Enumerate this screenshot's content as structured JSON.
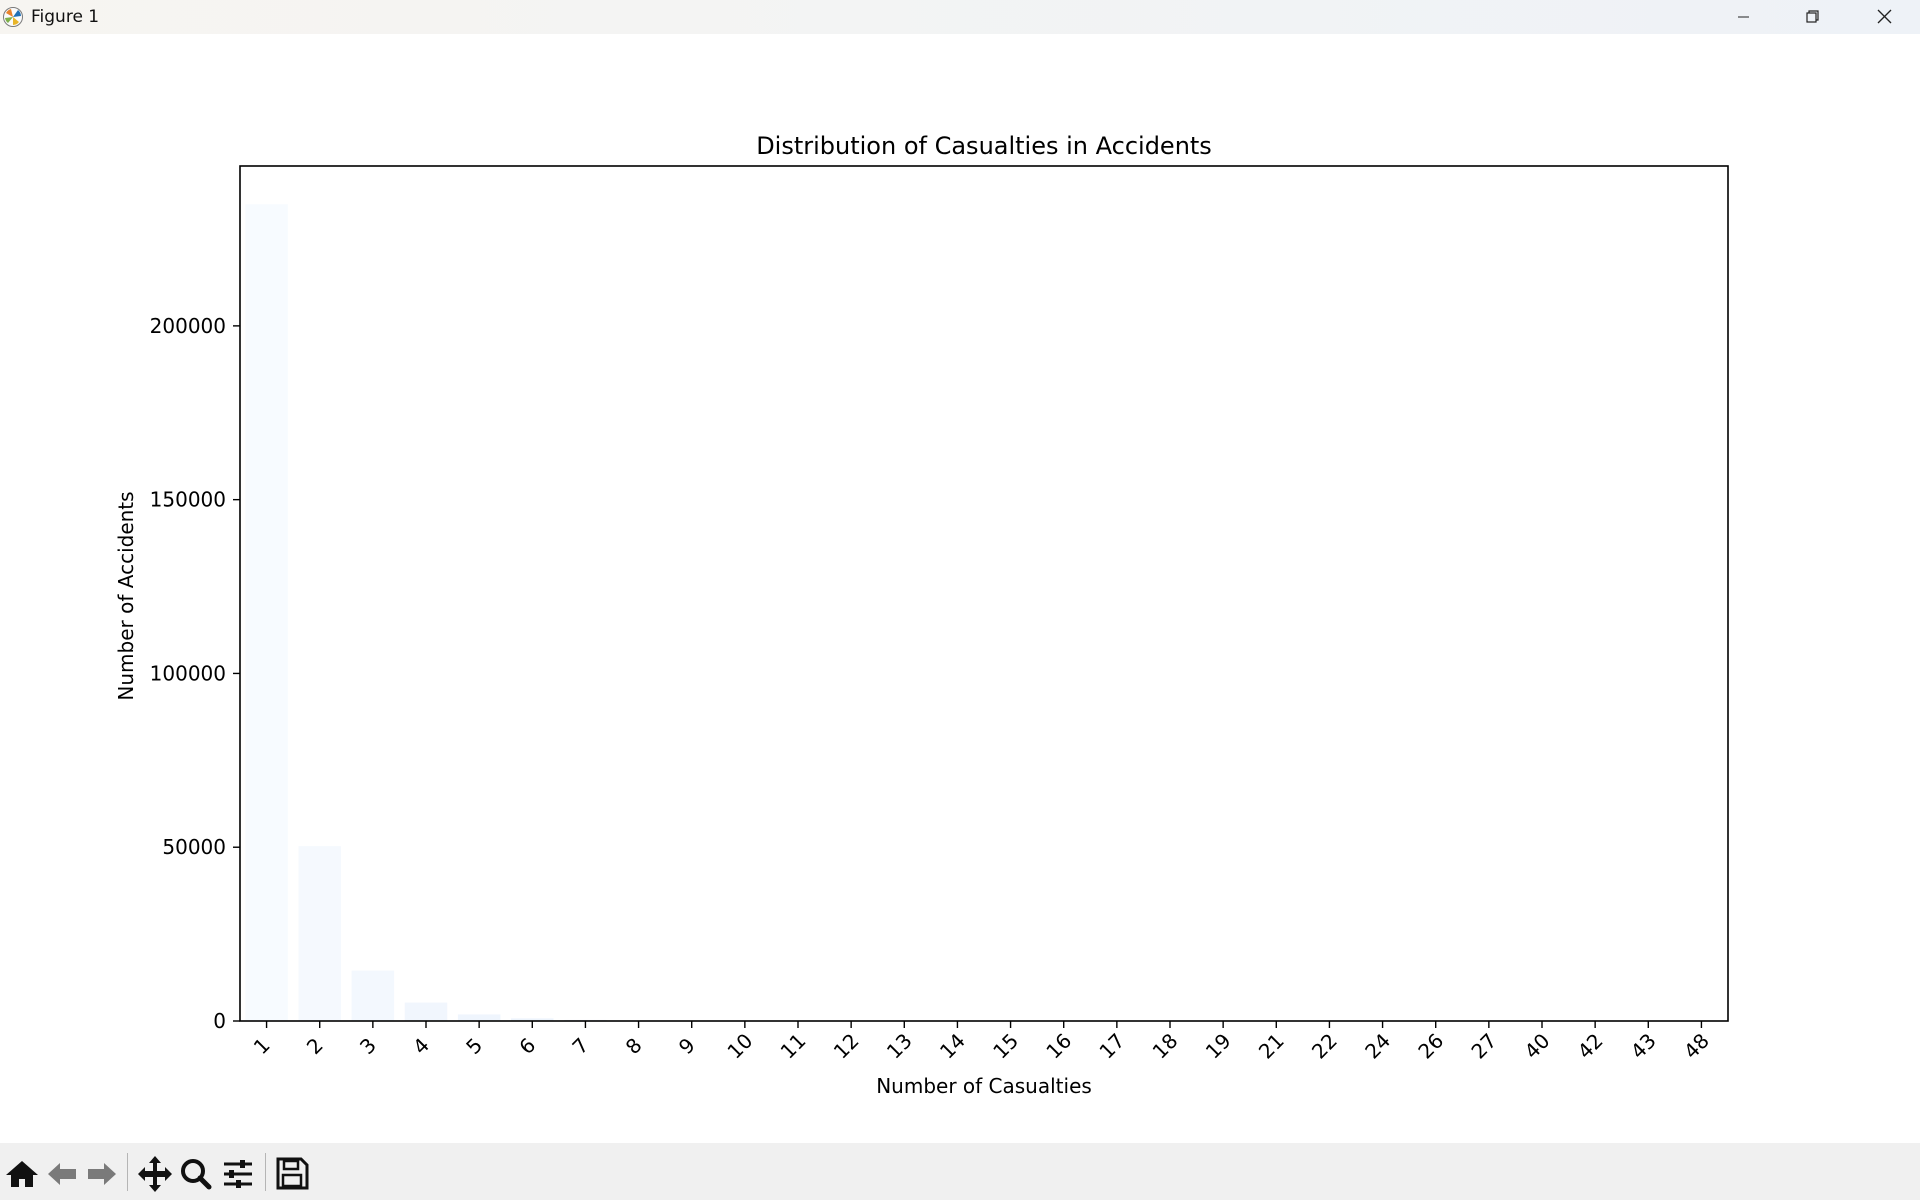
{
  "window": {
    "title": "Figure 1",
    "controls": [
      "minimize",
      "restore",
      "close"
    ]
  },
  "toolbar": {
    "buttons": [
      "home-icon",
      "back-arrow-icon",
      "forward-arrow-icon",
      "pan-icon",
      "zoom-icon",
      "configure-subplots-icon",
      "save-icon"
    ]
  },
  "chart_data": {
    "type": "bar",
    "title": "Distribution of Casualties in Accidents",
    "xlabel": "Number of Casualties",
    "ylabel": "Number of Accidents",
    "categories": [
      "1",
      "2",
      "3",
      "4",
      "5",
      "6",
      "7",
      "8",
      "9",
      "10",
      "11",
      "12",
      "13",
      "14",
      "15",
      "16",
      "17",
      "18",
      "19",
      "21",
      "22",
      "24",
      "26",
      "27",
      "40",
      "42",
      "43",
      "48"
    ],
    "values": [
      235000,
      50300,
      14500,
      5300,
      1900,
      750,
      300,
      140,
      70,
      40,
      25,
      15,
      10,
      8,
      5,
      4,
      3,
      3,
      2,
      2,
      1,
      1,
      1,
      1,
      1,
      1,
      1,
      1
    ],
    "ylim": [
      0,
      246000
    ],
    "yticks": [
      0,
      50000,
      100000,
      150000,
      200000
    ],
    "ytick_labels": [
      "0",
      "50000",
      "100000",
      "150000",
      "200000"
    ],
    "grid": false,
    "xtick_rotation_deg": 45,
    "colors": [
      "#f7fbff",
      "#f5f9fe",
      "#f3f8fe",
      "#f1f6fd",
      "#eff5fd",
      "#edf4fc",
      "#ebf3fb",
      "#e9f2fb",
      "#e7f1fa",
      "#e5eff9",
      "#e3eef9",
      "#e1edf8",
      "#dfecf7",
      "#dde9f7",
      "#dbe9f6",
      "#d9e7f5",
      "#d7e6f5",
      "#d5e5f4",
      "#d3e3f3",
      "#d1e2f3",
      "#cfe1f2",
      "#cde0f1",
      "#cbdef1",
      "#c9ddf0",
      "#c7dcef",
      "#c5daee",
      "#c3d9ee",
      "#c1d8ed"
    ]
  }
}
